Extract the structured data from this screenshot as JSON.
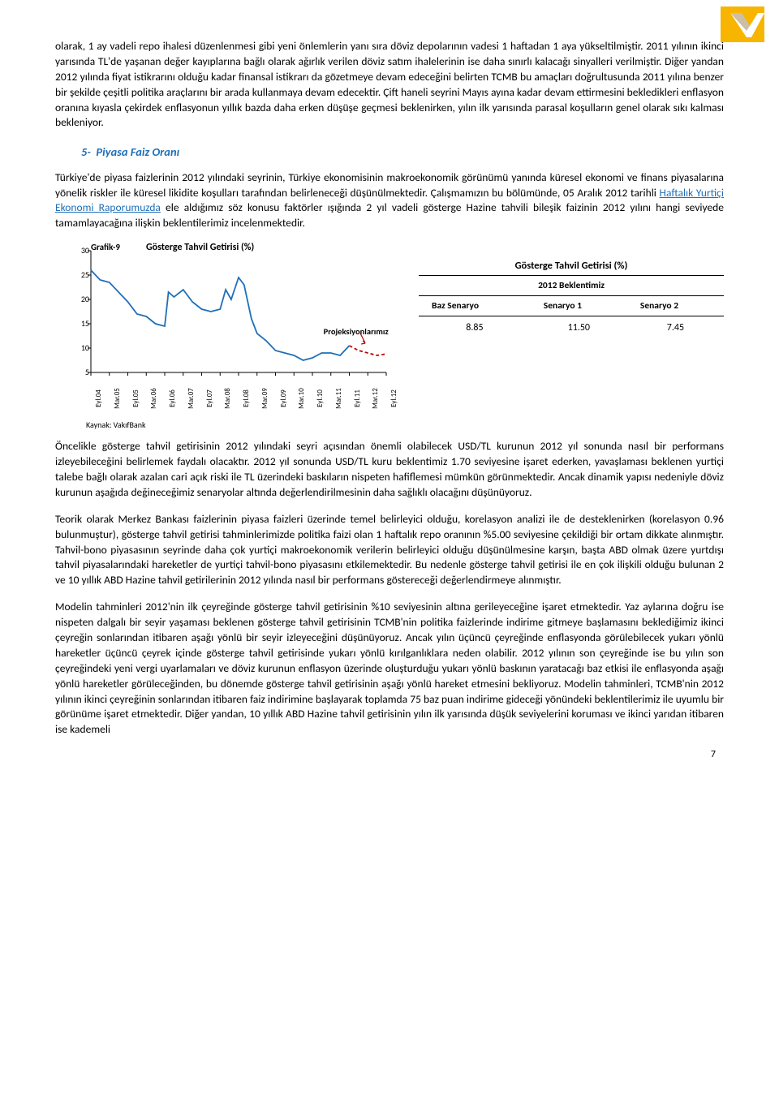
{
  "logo": {
    "bg": "#f7b500",
    "accent": "#ffffff",
    "shadow": "#6b4a00"
  },
  "paragraphs": {
    "p1": "olarak, 1 ay vadeli repo ihalesi düzenlenmesi gibi yeni önlemlerin yanı sıra döviz depolarının vadesi 1 haftadan 1 aya yükseltilmiştir. 2011 yılının ikinci yarısında TL'de yaşanan değer kayıplarına bağlı olarak ağırlık verilen döviz satım ihalelerinin ise daha sınırlı kalacağı sinyalleri verilmiştir. Diğer yandan 2012 yılında fiyat istikrarını olduğu kadar finansal istikrarı da gözetmeye devam edeceğini belirten TCMB bu amaçları doğrultusunda 2011 yılına benzer bir şekilde çeşitli politika araçlarını bir arada kullanmaya devam edecektir. Çift haneli seyrini Mayıs ayına kadar devam ettirmesini bekledikleri enflasyon oranına kıyasla çekirdek enflasyonun yıllık bazda daha erken düşüşe geçmesi beklenirken, yılın ilk yarısında parasal koşulların genel olarak sıkı kalması bekleniyor.",
    "p2a": "Türkiye'de piyasa faizlerinin 2012 yılındaki seyrinin, Türkiye ekonomisinin makroekonomik görünümü yanında küresel ekonomi ve finans piyasalarına yönelik riskler ile küresel likidite koşulları tarafından belirleneceği düşünülmektedir. Çalışmamızın bu bölümünde, 05 Aralık 2012 tarihli ",
    "p2link": "Haftalık Yurtiçi Ekonomi Raporumuzda",
    "p2b": " ele aldığımız söz konusu faktörler ışığında 2 yıl vadeli gösterge Hazine tahvili bileşik faizinin 2012 yılını hangi seviyede tamamlayacağına ilişkin beklentilerimiz incelenmektedir.",
    "p3wrap": "Öncelikle   gösterge   tahvil   getirisinin   2012 yılındaki   seyri   açısından   önemli   olabilecek USD/TL   kurunun   2012   yıl   sonunda   nasıl   bir performans izleyebileceğini belirlemek faydalı olacaktır.  2012 yıl sonunda USD/TL kuru beklentimiz 1.70 seviyesine işaret ederken, yavaşlaması beklenen yurtiçi talebe bağlı olarak azalan cari açık riski ile TL üzerindeki baskıların nispeten hafiflemesi mümkün görünmektedir. Ancak dinamik yapısı nedeniyle döviz kurunun aşağıda değineceğimiz senaryolar altında değerlendirilmesinin daha sağlıklı olacağını düşünüyoruz.",
    "p4": "Teorik olarak Merkez Bankası faizlerinin piyasa faizleri üzerinde temel belirleyici olduğu, korelasyon analizi ile de desteklenirken (korelasyon 0.96 bulunmuştur), gösterge tahvil getirisi tahminlerimizde politika faizi olan 1 haftalık repo oranının %5.00 seviyesine çekildiği bir ortam dikkate alınmıştır.  Tahvil-bono piyasasının seyrinde daha çok yurtiçi makroekonomik verilerin belirleyici olduğu düşünülmesine karşın, başta ABD olmak üzere yurtdışı tahvil piyasalarındaki hareketler de yurtiçi tahvil-bono piyasasını etkilemektedir. Bu nedenle gösterge tahvil getirisi ile en çok ilişkili olduğu bulunan 2 ve 10 yıllık ABD Hazine tahvil getirilerinin 2012 yılında nasıl bir performans göstereceği değerlendirmeye alınmıştır.",
    "p5": "Modelin tahminleri 2012'nin ilk çeyreğinde gösterge tahvil getirisinin %10 seviyesinin altına gerileyeceğine işaret etmektedir. Yaz aylarına doğru ise nispeten dalgalı bir seyir yaşaması beklenen gösterge tahvil getirisinin TCMB'nin politika faizlerinde indirime gitmeye başlamasını beklediğimiz ikinci çeyreğin sonlarından itibaren aşağı yönlü bir seyir izleyeceğini düşünüyoruz. Ancak yılın üçüncü çeyreğinde enflasyonda görülebilecek yukarı yönlü hareketler üçüncü çeyrek içinde gösterge tahvil getirisinde yukarı yönlü kırılganlıklara neden olabilir. 2012 yılının son çeyreğinde ise bu yılın son çeyreğindeki yeni vergi uyarlamaları ve döviz kurunun enflasyon üzerinde oluşturduğu yukarı yönlü baskının yaratacağı baz etkisi ile enflasyonda aşağı yönlü hareketler görüleceğinden, bu dönemde gösterge tahvil getirisinin aşağı yönlü hareket etmesini bekliyoruz. Modelin tahminleri, TCMB'nin 2012 yılının ikinci çeyreğinin sonlarından itibaren faiz indirimine başlayarak toplamda 75 baz puan indirime gideceği yönündeki beklentilerimiz ile uyumlu bir görünüme işaret etmektedir. Diğer yandan, 10 yıllık ABD Hazine tahvil getirisinin yılın ilk yarısında düşük seviyelerini koruması ve ikinci yarıdan itibaren ise kademeli"
  },
  "section5": {
    "num": "5-",
    "title": "Piyasa Faiz Oranı"
  },
  "chart": {
    "label": "Grafik-9",
    "title": "Gösterge Tahvil Getirisi (%)",
    "proj_label": "Projeksiyonlarımız",
    "source": "Kaynak: VakıfBank",
    "background_color": "#ffffff",
    "axis_color": "#000000",
    "ylim": [
      5,
      30
    ],
    "yticks": [
      5,
      10,
      15,
      20,
      25,
      30
    ],
    "xlabels": [
      "Eyl.04",
      "Mar.05",
      "Eyl.05",
      "Mar.06",
      "Eyl.06",
      "Mar.07",
      "Eyl.07",
      "Mar.08",
      "Eyl.08",
      "Mar.09",
      "Eyl.09",
      "Mar.10",
      "Eyl.10",
      "Mar.11",
      "Eyl.11",
      "Mar.12",
      "Eyl.12"
    ],
    "hist_color": "#1f6fb8",
    "proj_color": "#c00000",
    "proj_dash": "4 3",
    "hist_series": [
      [
        0,
        26.0
      ],
      [
        0.5,
        24.0
      ],
      [
        1,
        23.5
      ],
      [
        2,
        19.5
      ],
      [
        2.5,
        17.0
      ],
      [
        3,
        16.5
      ],
      [
        3.5,
        15.0
      ],
      [
        4,
        14.5
      ],
      [
        4.2,
        21.5
      ],
      [
        4.5,
        20.5
      ],
      [
        5,
        22.0
      ],
      [
        5.5,
        19.5
      ],
      [
        6,
        18.0
      ],
      [
        6.5,
        17.5
      ],
      [
        7,
        18.0
      ],
      [
        7.3,
        22.0
      ],
      [
        7.6,
        20.0
      ],
      [
        8,
        24.5
      ],
      [
        8.3,
        23.0
      ],
      [
        8.7,
        16.0
      ],
      [
        9,
        13.0
      ],
      [
        9.5,
        11.5
      ],
      [
        10,
        9.5
      ],
      [
        10.5,
        9.0
      ],
      [
        11,
        8.5
      ],
      [
        11.5,
        7.5
      ],
      [
        12,
        8.0
      ],
      [
        12.5,
        9.0
      ],
      [
        13,
        9.0
      ],
      [
        13.5,
        8.5
      ],
      [
        14,
        10.5
      ]
    ],
    "proj_series": [
      [
        14,
        10.5
      ],
      [
        14.5,
        9.5
      ],
      [
        15,
        9.0
      ],
      [
        15.5,
        8.5
      ],
      [
        16,
        8.8
      ]
    ]
  },
  "table": {
    "title": "Gösterge Tahvil Getirisi (%)",
    "subtitle": "2012 Beklentimiz",
    "headers": [
      "Baz Senaryo",
      "Senaryo 1",
      "Senaryo 2"
    ],
    "row": [
      "8.85",
      "11.50",
      "7.45"
    ]
  },
  "page_number": "7"
}
